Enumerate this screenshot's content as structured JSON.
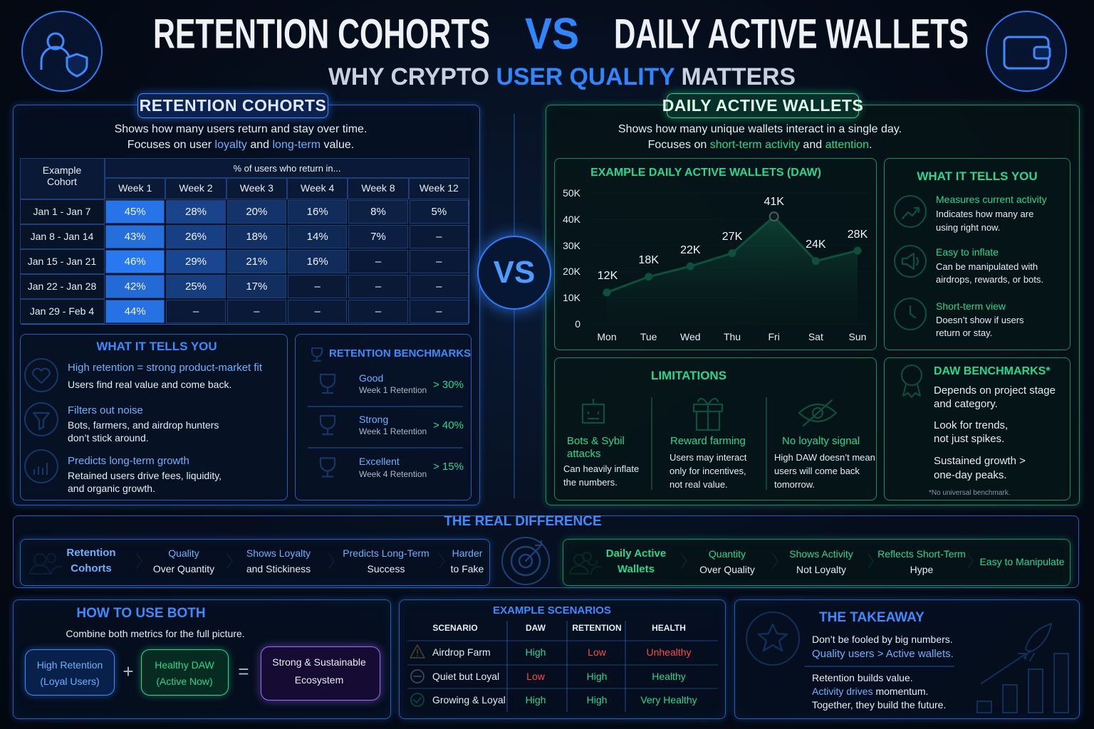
{
  "header": {
    "title_left": "RETENTION COHORTS",
    "vs": "VS",
    "title_right": "DAILY ACTIVE WALLETS",
    "subtitle": [
      "WHY CRYPTO ",
      "USER QUALITY",
      " MATTERS"
    ],
    "center_vs": "VS"
  },
  "retention": {
    "label": "RETENTION COHORTS",
    "desc1": "Shows how many users return and stay over time.",
    "desc2": [
      "Focuses on user ",
      "loyalty",
      " and ",
      "long-term",
      " value."
    ],
    "table": {
      "corner": "Example Cohort",
      "group_header": "% of users who return in...",
      "columns": [
        "Week 1",
        "Week 2",
        "Week 3",
        "Week 4",
        "Week 8",
        "Week 12"
      ],
      "rows": [
        {
          "cohort": "Jan 1 - Jan 7",
          "cells": [
            "45%",
            "28%",
            "20%",
            "16%",
            "8%",
            "5%"
          ]
        },
        {
          "cohort": "Jan 8 - Jan 14",
          "cells": [
            "43%",
            "26%",
            "18%",
            "14%",
            "7%",
            "–"
          ]
        },
        {
          "cohort": "Jan 15 - Jan 21",
          "cells": [
            "46%",
            "29%",
            "21%",
            "16%",
            "–",
            "–"
          ]
        },
        {
          "cohort": "Jan 22 - Jan 28",
          "cells": [
            "42%",
            "25%",
            "17%",
            "–",
            "–",
            "–"
          ]
        },
        {
          "cohort": "Jan 29 - Feb 4",
          "cells": [
            "44%",
            "–",
            "–",
            "–",
            "–",
            "–"
          ]
        }
      ]
    },
    "tells": {
      "title": "WHAT IT TELLS YOU",
      "items": [
        {
          "title": "High retention = strong product-market fit",
          "text": [
            "Users find real value and come back."
          ]
        },
        {
          "title": "Filters out noise",
          "text": [
            "Bots, farmers, and airdrop hunters",
            "don’t stick around."
          ]
        },
        {
          "title": "Predicts long-term growth",
          "text": [
            "Retained users drive fees, liquidity,",
            "and organic growth."
          ]
        }
      ]
    },
    "benchmarks": {
      "title": "RETENTION BENCHMARKS",
      "items": [
        {
          "level": "Good",
          "metric": "Week 1 Retention",
          "threshold": "> 30%"
        },
        {
          "level": "Strong",
          "metric": "Week 1 Retention",
          "threshold": "> 40%"
        },
        {
          "level": "Excellent",
          "metric": "Week 4 Retention",
          "threshold": "> 15%"
        }
      ]
    }
  },
  "daw": {
    "label": "DAILY ACTIVE WALLETS",
    "desc1": "Shows how many unique wallets interact in a single day.",
    "desc2": [
      "Focuses on ",
      "short-term activity",
      " and ",
      "attention",
      "."
    ],
    "tells": {
      "title": "WHAT IT TELLS YOU",
      "items": [
        {
          "title": "Measures current activity",
          "text": [
            "Indicates how many are",
            "using right now."
          ]
        },
        {
          "title": "Easy to inflate",
          "text": [
            "Can be manipulated with",
            "airdrops, rewards, or bots."
          ]
        },
        {
          "title": "Short-term view",
          "text": [
            "Doesn’t show if users",
            "return or stay."
          ]
        }
      ]
    },
    "limitations": {
      "title": "LIMITATIONS",
      "items": [
        {
          "title": [
            "Bots & Sybil",
            "attacks"
          ],
          "text": [
            "Can heavily inflate",
            "the numbers."
          ]
        },
        {
          "title": [
            "Reward farming"
          ],
          "text": [
            "Users may interact",
            "only for incentives,",
            "not real value."
          ]
        },
        {
          "title": [
            "No loyalty signal"
          ],
          "text": [
            "High DAW doesn’t mean",
            "users will come back",
            "tomorrow."
          ]
        }
      ]
    },
    "benchmarks": {
      "title": "DAW BENCHMARKS*",
      "lines": [
        [
          "Depends on project stage",
          "and category."
        ],
        [
          "Look for trends,",
          "not just spikes."
        ],
        [
          "Sustained growth >",
          "one-day peaks."
        ]
      ],
      "footnote": "*No universal benchmark."
    }
  },
  "chart_data": {
    "type": "area",
    "title": "EXAMPLE DAILY ACTIVE WALLETS (DAW)",
    "categories": [
      "Mon",
      "Tue",
      "Wed",
      "Thu",
      "Fri",
      "Sat",
      "Sun"
    ],
    "values": [
      12000,
      18000,
      22000,
      27000,
      41000,
      24000,
      28000
    ],
    "value_labels": [
      "12K",
      "18K",
      "22K",
      "27K",
      "41K",
      "24K",
      "28K"
    ],
    "color": "#27d98f",
    "ylim": [
      0,
      50000
    ],
    "yticks": [
      0,
      {
        "value": 10000,
        "label": "10K"
      },
      {
        "value": 20000,
        "label": "20K"
      },
      {
        "value": 30000,
        "label": "30K"
      },
      {
        "value": 40000,
        "label": "40K"
      },
      {
        "value": 50000,
        "label": "50K"
      }
    ],
    "grid": true
  },
  "difference": {
    "title": "THE REAL DIFFERENCE",
    "retention": [
      [
        "Retention",
        "Cohorts"
      ],
      [
        "Quality",
        "Over Quantity"
      ],
      [
        "Shows Loyalty",
        "and Stickiness"
      ],
      [
        "Predicts Long-Term",
        "Success"
      ],
      [
        "Harder",
        "to Fake"
      ]
    ],
    "daw": [
      [
        "Daily Active",
        "Wallets"
      ],
      [
        "Quantity",
        "Over Quality"
      ],
      [
        "Shows Activity",
        "Not Loyalty"
      ],
      [
        "Reflects Short-Term",
        "Hype"
      ],
      [
        "Easy to Manipulate"
      ]
    ]
  },
  "how_to": {
    "title": "HOW TO USE BOTH",
    "desc": "Combine both metrics for the full picture.",
    "a": [
      "High Retention",
      "(Loyal Users)"
    ],
    "plus": "+",
    "b": [
      "Healthy DAW",
      "(Active Now)"
    ],
    "eq": "=",
    "result": [
      "Strong & Sustainable",
      "Ecosystem"
    ]
  },
  "scenarios": {
    "title": "EXAMPLE SCENARIOS",
    "columns": [
      "SCENARIO",
      "DAW",
      "RETENTION",
      "HEALTH"
    ],
    "rows": [
      [
        "Airdrop Farm",
        "High",
        "Low",
        "Unhealthy"
      ],
      [
        "Quiet but Loyal",
        "Low",
        "High",
        "Healthy"
      ],
      [
        "Growing & Loyal",
        "High",
        "High",
        "Very Healthy"
      ]
    ]
  },
  "takeaway": {
    "title": "THE TAKEAWAY",
    "lines1": [
      "Don’t be fooled by big numbers.",
      "Quality users > Active wallets."
    ],
    "line2": "Retention builds value.",
    "line3": [
      "Activity drives",
      " momentum."
    ],
    "line4": "Together, they build the future."
  }
}
